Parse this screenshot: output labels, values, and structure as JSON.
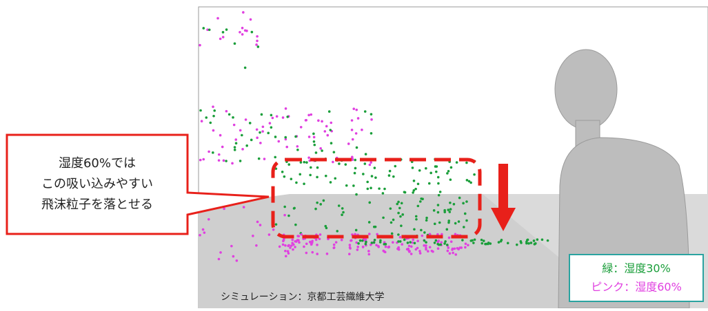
{
  "callout": {
    "lines": [
      "湿度60%では",
      "この吸い込みやすい",
      "飛沫粒子を落とせる"
    ]
  },
  "legend": {
    "items": [
      {
        "label": "緑：湿度30%",
        "color": "#1a9e3a"
      },
      {
        "label": "ピンク：湿度60%",
        "color": "#e040e0"
      }
    ]
  },
  "credit": "シミュレーション：京都工芸織維大学"
}
